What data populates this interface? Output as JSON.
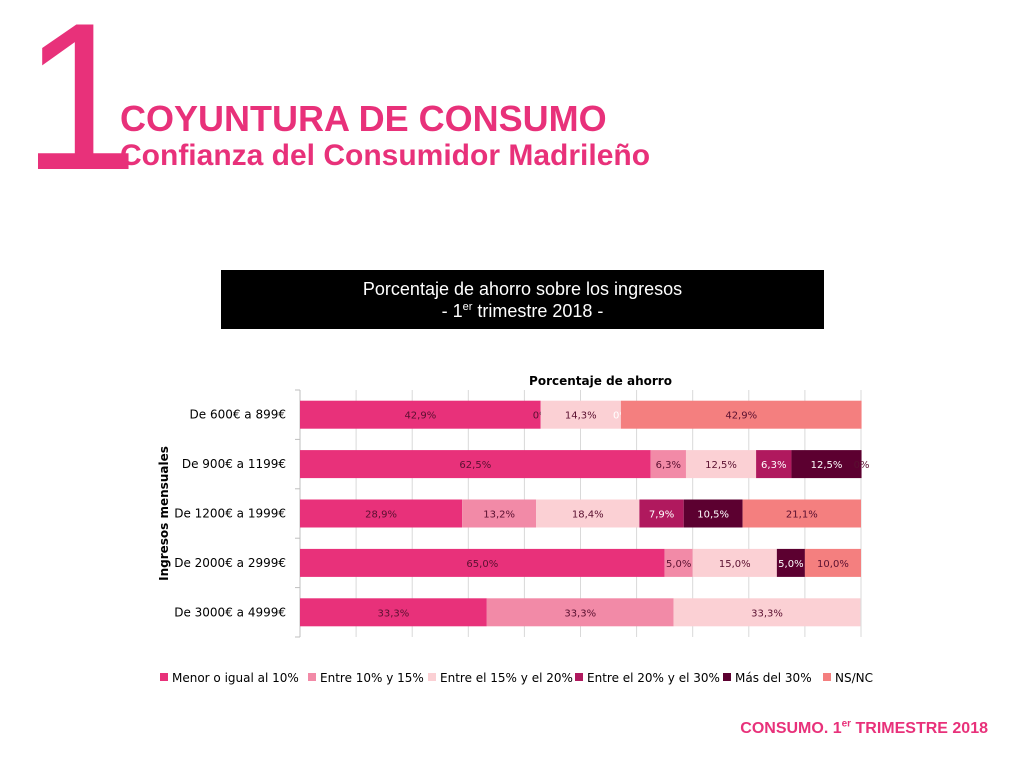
{
  "header": {
    "number": "1",
    "title": "COYUNTURA DE CONSUMO",
    "subtitle": "Confianza del Consumidor Madrileño"
  },
  "box": {
    "line1": "Porcentaje de ahorro sobre los ingresos",
    "line2_prefix": "- 1",
    "line2_sup": "er",
    "line2_suffix": " trimestre 2018 -"
  },
  "footer": {
    "prefix": "CONSUMO. 1",
    "sup": "er",
    "suffix": " TRIMESTRE 2018"
  },
  "chart_data": {
    "type": "bar",
    "orientation": "horizontal",
    "stacked": "100%",
    "title": "Porcentaje de ahorro",
    "xlabel": "",
    "ylabel": "Ingresos mensuales",
    "xlim": [
      0,
      100
    ],
    "grid": true,
    "legend_position": "bottom",
    "categories": [
      "De 600€ a 899€",
      "De 900€ a 1199€",
      "De 1200€ a 1999€",
      "De 2000€ a 2999€",
      "De 3000€ a 4999€"
    ],
    "series": [
      {
        "name": "Menor o igual al 10%",
        "color": "#e8317a",
        "values": [
          42.9,
          62.5,
          28.9,
          65.0,
          33.3
        ],
        "labels": [
          "42,9%",
          "62,5%",
          "28,9%",
          "65,0%",
          "33,3%"
        ]
      },
      {
        "name": "Entre 10% y 15%",
        "color": "#f28aa7",
        "values": [
          0,
          6.3,
          13.2,
          5.0,
          33.3
        ],
        "labels": [
          "0%",
          "6,3%",
          "13,2%",
          "5,0%",
          "33,3%"
        ]
      },
      {
        "name": "Entre el 15% y el 20%",
        "color": "#fbd0d4",
        "values": [
          14.3,
          12.5,
          18.4,
          15.0,
          33.3
        ],
        "labels": [
          "14,3%",
          "12,5%",
          "18,4%",
          "15,0%",
          "33,3%"
        ]
      },
      {
        "name": "Entre el 20% y el 30%",
        "color": "#b0195e",
        "values": [
          0,
          6.3,
          7.9,
          0,
          0
        ],
        "labels": [
          "0%",
          "6,3%",
          "7,9%",
          "",
          ""
        ]
      },
      {
        "name": "Más del 30%",
        "color": "#5c0030",
        "values": [
          0,
          12.5,
          10.5,
          5.0,
          0
        ],
        "labels": [
          "",
          "12,5%",
          "10,5%",
          "5,0%",
          ""
        ]
      },
      {
        "name": "NS/NC",
        "color": "#f47f7f",
        "values": [
          42.9,
          0,
          21.1,
          10.0,
          0
        ],
        "labels": [
          "42,9%",
          "0%",
          "21,1%",
          "10,0%",
          ""
        ]
      }
    ]
  }
}
